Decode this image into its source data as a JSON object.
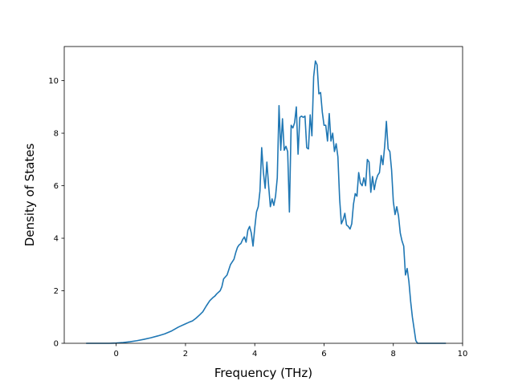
{
  "chart_data": {
    "type": "line",
    "title": "",
    "xlabel": "Frequency (THz)",
    "ylabel": "Density of States",
    "xlim": [
      -1.5,
      10.0
    ],
    "ylim": [
      0,
      11.3
    ],
    "xticks": [
      0,
      2,
      4,
      6,
      8,
      10
    ],
    "yticks": [
      0,
      2,
      4,
      6,
      8,
      10
    ],
    "grid": false,
    "line_color": "#1f77b4",
    "series": [
      {
        "x": [
          -0.85,
          -0.5,
          -0.2,
          0.0,
          0.2,
          0.4,
          0.6,
          0.8,
          1.0,
          1.2,
          1.4,
          1.6,
          1.8,
          2.0,
          2.1,
          2.2,
          2.3,
          2.4,
          2.5,
          2.6,
          2.7,
          2.8,
          2.85,
          2.9,
          3.0,
          3.05,
          3.1,
          3.2,
          3.3,
          3.4,
          3.45,
          3.5,
          3.55,
          3.6,
          3.65,
          3.7,
          3.75,
          3.8,
          3.85,
          3.9,
          3.95,
          4.0,
          4.05,
          4.1,
          4.15,
          4.2,
          4.25,
          4.3,
          4.35,
          4.4,
          4.45,
          4.5,
          4.55,
          4.6,
          4.65,
          4.7,
          4.75,
          4.8,
          4.85,
          4.9,
          4.95,
          5.0,
          5.05,
          5.1,
          5.15,
          5.2,
          5.25,
          5.3,
          5.35,
          5.4,
          5.45,
          5.5,
          5.55,
          5.6,
          5.65,
          5.7,
          5.75,
          5.8,
          5.85,
          5.9,
          5.95,
          6.0,
          6.05,
          6.1,
          6.15,
          6.2,
          6.25,
          6.3,
          6.35,
          6.4,
          6.45,
          6.5,
          6.55,
          6.6,
          6.65,
          6.7,
          6.75,
          6.8,
          6.85,
          6.9,
          6.95,
          7.0,
          7.05,
          7.1,
          7.15,
          7.2,
          7.25,
          7.3,
          7.35,
          7.4,
          7.45,
          7.5,
          7.55,
          7.6,
          7.65,
          7.7,
          7.75,
          7.8,
          7.85,
          7.9,
          7.95,
          8.0,
          8.05,
          8.1,
          8.15,
          8.2,
          8.25,
          8.3,
          8.35,
          8.4,
          8.45,
          8.5,
          8.55,
          8.6,
          8.65,
          8.7,
          9.0,
          9.5
        ],
        "y": [
          0.0,
          0.0,
          0.0,
          0.01,
          0.03,
          0.06,
          0.1,
          0.15,
          0.21,
          0.28,
          0.36,
          0.47,
          0.62,
          0.74,
          0.8,
          0.85,
          0.95,
          1.07,
          1.2,
          1.42,
          1.62,
          1.75,
          1.8,
          1.88,
          2.0,
          2.15,
          2.45,
          2.6,
          3.0,
          3.2,
          3.45,
          3.65,
          3.75,
          3.8,
          3.95,
          4.05,
          3.85,
          4.3,
          4.45,
          4.2,
          3.7,
          4.4,
          5.0,
          5.2,
          5.8,
          7.45,
          6.5,
          5.9,
          6.9,
          6.0,
          5.2,
          5.5,
          5.25,
          5.6,
          6.3,
          9.05,
          7.35,
          8.55,
          7.35,
          7.5,
          7.3,
          5.0,
          8.3,
          8.2,
          8.4,
          9.0,
          7.2,
          8.6,
          8.65,
          8.6,
          8.65,
          7.45,
          7.4,
          8.7,
          7.9,
          10.15,
          10.75,
          10.6,
          9.5,
          9.55,
          8.8,
          8.3,
          8.3,
          7.7,
          8.75,
          7.7,
          8.0,
          7.3,
          7.6,
          7.1,
          5.5,
          4.55,
          4.7,
          4.95,
          4.5,
          4.45,
          4.35,
          4.55,
          5.3,
          5.7,
          5.6,
          6.5,
          6.1,
          6.0,
          6.3,
          6.0,
          7.0,
          6.9,
          5.75,
          6.35,
          5.85,
          6.2,
          6.4,
          6.5,
          7.15,
          6.8,
          7.5,
          8.45,
          7.4,
          7.3,
          6.6,
          5.4,
          4.9,
          5.2,
          4.85,
          4.2,
          3.9,
          3.7,
          2.6,
          2.85,
          2.35,
          1.6,
          1.0,
          0.55,
          0.1,
          0.0,
          0.0,
          0.0
        ]
      }
    ]
  }
}
